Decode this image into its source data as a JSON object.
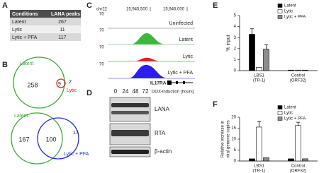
{
  "panel_labels": [
    "A",
    "B",
    "C",
    "D",
    "E",
    "F"
  ],
  "table": {
    "header": [
      "Conditions",
      "LANA peaks"
    ],
    "rows": [
      [
        "Latent",
        267
      ],
      [
        "Lytic",
        11
      ],
      [
        "Lytic + PFA",
        117
      ]
    ]
  },
  "venn": [
    {
      "set1": "Latent",
      "set2": "Lytic",
      "only1": 258,
      "overlap": 9,
      "only2": 2
    },
    {
      "set1": "Latent",
      "set2": "Lytic + PFA",
      "only1": 167,
      "overlap": 100,
      "only2": 17
    }
  ],
  "tracks": {
    "chrom": "chr22",
    "coords": [
      "15,945,500",
      "15,946,000"
    ],
    "scale": 70,
    "rows": [
      "Uninfected",
      "Latent",
      "Lytic",
      "Lytic + PFA"
    ],
    "gene": "IL17RA"
  },
  "blot": {
    "times": [
      "0",
      "24",
      "48",
      "72"
    ],
    "time_label": "DOX-induction (hours)",
    "proteins": [
      "LANA",
      "RTA",
      "β-actin"
    ]
  },
  "chart_data": [
    {
      "type": "bar",
      "ylabel": "% input",
      "categories": [
        "LBS1",
        "Control"
      ],
      "category_sublabels": [
        "(TR-1)",
        "(ORF32)"
      ],
      "ylim": [
        0,
        5
      ],
      "yticks": [
        0,
        1,
        2,
        3,
        4,
        5
      ],
      "series": [
        {
          "name": "Latent",
          "color": "#000000",
          "values": [
            3.3,
            0.05
          ],
          "errors": [
            0.5,
            null
          ]
        },
        {
          "name": "Lytic",
          "color": "#ffffff",
          "values": [
            0.3,
            0.05
          ],
          "errors": [
            null,
            null
          ]
        },
        {
          "name": "Lytic + PFA",
          "color": "#8c8c8c",
          "values": [
            1.95,
            0.05
          ],
          "errors": [
            0.4,
            null
          ]
        }
      ]
    },
    {
      "type": "bar",
      "ylabel": [
        "Relative increase in",
        "viral genome copies"
      ],
      "categories": [
        "LBS1",
        "Control"
      ],
      "category_sublabels": [
        "(TR-1)",
        "(ORF32)"
      ],
      "ylim": [
        0,
        20
      ],
      "yticks": [
        0,
        5,
        10,
        15,
        20
      ],
      "series": [
        {
          "name": "Latent",
          "color": "#000000",
          "values": [
            1,
            1
          ],
          "errors": [
            null,
            null
          ]
        },
        {
          "name": "Lytic",
          "color": "#ffffff",
          "values": [
            15.5,
            16.2
          ],
          "errors": [
            2.5,
            1.5
          ]
        },
        {
          "name": "Lytic + PFA",
          "color": "#8c8c8c",
          "values": [
            1.5,
            1
          ],
          "errors": [
            null,
            null
          ]
        }
      ]
    }
  ]
}
